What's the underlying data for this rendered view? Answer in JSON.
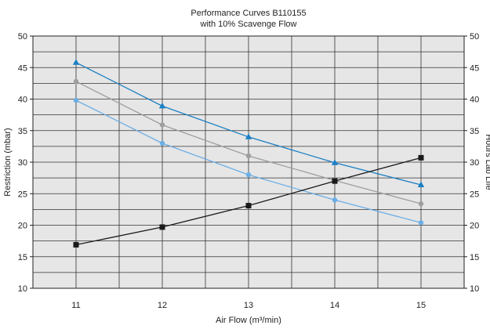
{
  "chart_data": {
    "type": "line",
    "title": "Performance Curves B110155",
    "subtitle": "with 10% Scavenge Flow",
    "xlabel": "Air Flow (m³/min)",
    "ylabel": "Restriction (mbar)",
    "y2label": "Hours Lab Life",
    "x": [
      11,
      12,
      13,
      14,
      15
    ],
    "xlim": [
      10.5,
      15.5
    ],
    "ylim": [
      10,
      50
    ],
    "y2lim": [
      10,
      50
    ],
    "xticks": [
      "11",
      "12",
      "13",
      "14",
      "15"
    ],
    "yticks": [
      "10",
      "15",
      "20",
      "25",
      "30",
      "35",
      "40",
      "45",
      "50"
    ],
    "y2ticks": [
      "10",
      "15",
      "20",
      "25",
      "30",
      "35",
      "40",
      "45",
      "50"
    ],
    "grid": true,
    "series": [
      {
        "values": [
          45.8,
          38.9,
          34.0,
          29.9,
          26.4
        ],
        "color": "#1a7fc4",
        "marker": "triangle",
        "axis": "left"
      },
      {
        "values": [
          42.8,
          35.9,
          31.0,
          27.1,
          23.4
        ],
        "color": "#9e9e9e",
        "marker": "circle",
        "axis": "left"
      },
      {
        "values": [
          39.8,
          33.0,
          28.0,
          24.0,
          20.4
        ],
        "color": "#6aaee6",
        "marker": "circle",
        "axis": "left"
      },
      {
        "values": [
          16.9,
          19.7,
          23.1,
          27.0,
          30.7
        ],
        "color": "#1a1a1a",
        "marker": "square",
        "axis": "right"
      }
    ]
  }
}
